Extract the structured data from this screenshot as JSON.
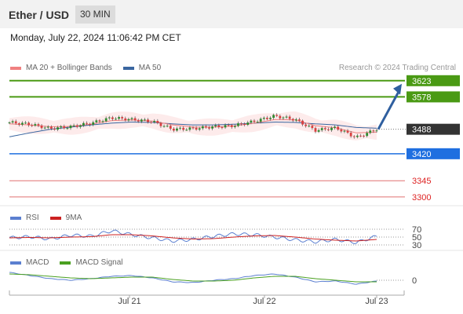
{
  "header": {
    "pair": "Ether / USD",
    "timeframe": "30 MIN"
  },
  "datetime": "Monday, July 22, 2024 11:06:42 PM CET",
  "legend_main": {
    "item1": "MA 20 + Bollinger Bands",
    "item2": "MA 50",
    "credit": "Research © 2024 Trading Central"
  },
  "legend_rsi": {
    "item1": "RSI",
    "item2": "9MA"
  },
  "legend_macd": {
    "item1": "MACD",
    "item2": "MACD Signal"
  },
  "colors": {
    "up": "#2e8b2e",
    "down": "#d94040",
    "ma20": "#f08080",
    "ma50": "#3a66a0",
    "rsi": "#5b7fd0",
    "rsi9": "#cc2222",
    "macd": "#5b7fd0",
    "signal": "#4aa020",
    "resistance": "#4a9a14",
    "pivot": "#1f6fe0",
    "support": "#e07070",
    "arrow": "#2f5f9f"
  },
  "chart_data": {
    "type": "line",
    "price": {
      "ylim": [
        3280,
        3640
      ],
      "x": [
        "Jul 20 18:00",
        "Jul 20 21:00",
        "Jul 21 00:00",
        "Jul 21 03:00",
        "Jul 21 06:00",
        "Jul 21 09:00",
        "Jul 21 12:00",
        "Jul 21 15:00",
        "Jul 21 18:00",
        "Jul 21 21:00",
        "Jul 22 00:00",
        "Jul 22 03:00",
        "Jul 22 06:00",
        "Jul 22 09:00",
        "Jul 22 12:00",
        "Jul 22 15:00",
        "Jul 22 18:00",
        "Jul 22 21:00",
        "Jul 22 23:00"
      ],
      "close": [
        3507,
        3502,
        3490,
        3495,
        3505,
        3520,
        3515,
        3510,
        3488,
        3490,
        3495,
        3498,
        3510,
        3525,
        3515,
        3485,
        3492,
        3465,
        3488
      ],
      "ma20": [
        3503,
        3500,
        3495,
        3496,
        3502,
        3512,
        3514,
        3511,
        3500,
        3494,
        3494,
        3497,
        3505,
        3515,
        3514,
        3498,
        3492,
        3478,
        3480
      ],
      "ma50": [
        3467,
        3478,
        3488,
        3494,
        3500,
        3505,
        3508,
        3507,
        3503,
        3500,
        3500,
        3502,
        3505,
        3508,
        3507,
        3503,
        3500,
        3493,
        3491
      ],
      "levels": [
        {
          "label": "3623",
          "value": 3623,
          "kind": "resistance"
        },
        {
          "label": "3578",
          "value": 3578,
          "kind": "resistance"
        },
        {
          "label": "3488",
          "value": 3488,
          "kind": "last"
        },
        {
          "label": "3420",
          "value": 3420,
          "kind": "pivot"
        },
        {
          "label": "3345",
          "value": 3345,
          "kind": "support"
        },
        {
          "label": "3300",
          "value": 3300,
          "kind": "support"
        }
      ],
      "forecast": {
        "from": 3488,
        "to": 3623
      }
    },
    "rsi": {
      "ylim": [
        20,
        80
      ],
      "ticks": [
        "70",
        "50",
        "30"
      ],
      "rsi": [
        48,
        51,
        45,
        55,
        52,
        66,
        56,
        48,
        40,
        44,
        52,
        58,
        56,
        50,
        43,
        38,
        44,
        36,
        52
      ],
      "ma9": [
        48,
        49,
        48,
        50,
        51,
        56,
        56,
        53,
        48,
        45,
        46,
        50,
        53,
        54,
        50,
        45,
        42,
        40,
        44
      ]
    },
    "macd": {
      "ylim": [
        -15,
        15
      ],
      "ticks": [
        "0"
      ],
      "macd": [
        10,
        6,
        2,
        0,
        2,
        5,
        6,
        3,
        -2,
        -3,
        0,
        2,
        6,
        8,
        4,
        -2,
        -1,
        -5,
        -1
      ],
      "signal": [
        8,
        7,
        5,
        3,
        2,
        3,
        4,
        4,
        1,
        -1,
        -1,
        0,
        3,
        5,
        5,
        2,
        0,
        -2,
        -2
      ]
    },
    "xticks": [
      "Jul 21",
      "Jul 22",
      "Jul 23"
    ]
  }
}
